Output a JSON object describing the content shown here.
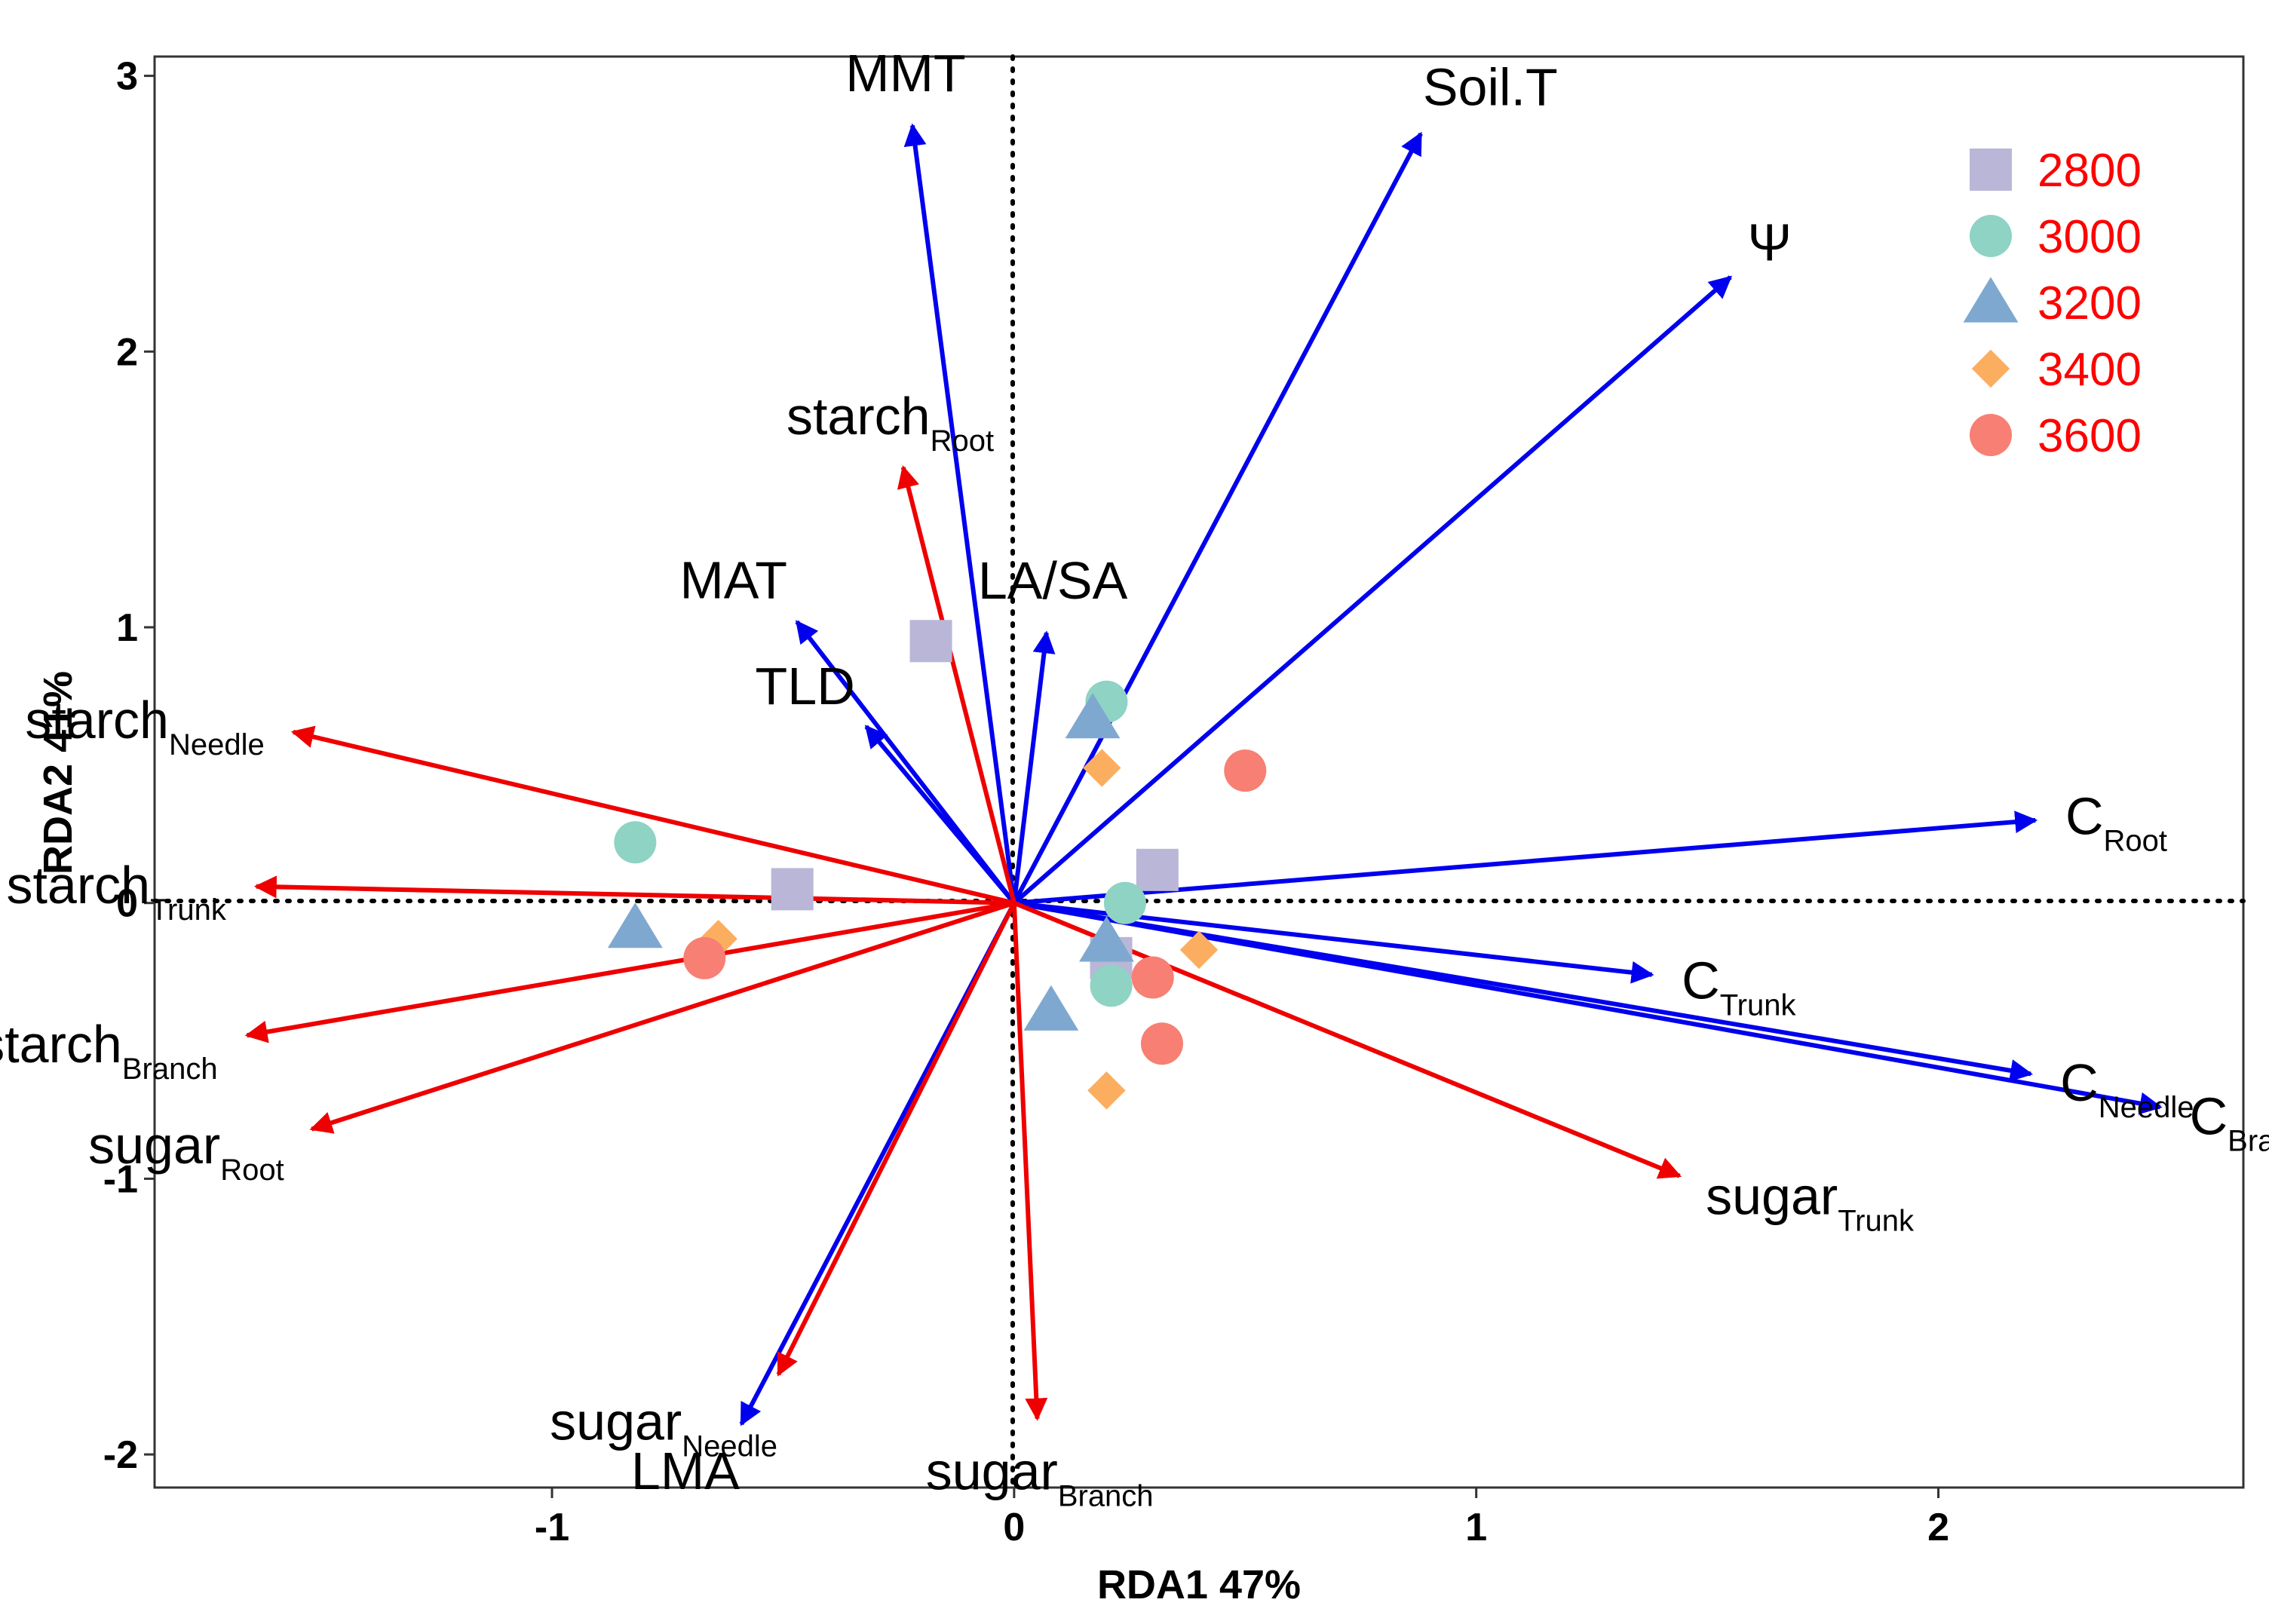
{
  "chart_data": {
    "type": "scatter",
    "subtype": "rda-biplot",
    "xlabel": "RDA1 47%",
    "ylabel": "RDA2 41%",
    "xlim": [
      -1.86,
      2.66
    ],
    "ylim": [
      -2.12,
      3.07
    ],
    "x_ticks": [
      -1,
      0,
      1,
      2
    ],
    "x_tick_labels": [
      "-1",
      "0",
      "1",
      "2"
    ],
    "y_ticks": [
      -2,
      -1,
      0,
      1,
      2,
      3
    ],
    "y_tick_labels": [
      "-2",
      "-1",
      "0",
      "1",
      "2",
      "3"
    ],
    "grid": false,
    "reference_lines": "dotted lines at x = 0 and y = 0",
    "legend_position": "top-right",
    "colors": {
      "environment_vectors": "#0000ee",
      "trait_vectors": "#ee0000",
      "legend_text": "#ff0000"
    },
    "groups": [
      {
        "name": "2800",
        "shape": "square",
        "color": "#b9b6d8",
        "points": [
          [
            -0.18,
            0.95
          ],
          [
            0.31,
            0.12
          ],
          [
            -0.48,
            0.05
          ],
          [
            0.21,
            -0.2
          ]
        ]
      },
      {
        "name": "3000",
        "shape": "circle",
        "color": "#8ed3c3",
        "points": [
          [
            0.2,
            0.73
          ],
          [
            -0.82,
            0.22
          ],
          [
            0.24,
            0.0
          ],
          [
            0.21,
            -0.3
          ]
        ]
      },
      {
        "name": "3200",
        "shape": "triangle",
        "color": "#7ea8cf",
        "points": [
          [
            0.17,
            0.67
          ],
          [
            -0.82,
            -0.09
          ],
          [
            0.2,
            -0.14
          ],
          [
            0.08,
            -0.39
          ]
        ]
      },
      {
        "name": "3400",
        "shape": "diamond",
        "color": "#fbae5f",
        "points": [
          [
            0.19,
            0.49
          ],
          [
            -0.64,
            -0.13
          ],
          [
            0.4,
            -0.17
          ],
          [
            0.2,
            -0.68
          ]
        ]
      },
      {
        "name": "3600",
        "shape": "circle",
        "color": "#f77f73",
        "points": [
          [
            0.5,
            0.48
          ],
          [
            -0.67,
            -0.2
          ],
          [
            0.3,
            -0.27
          ],
          [
            0.32,
            -0.51
          ]
        ]
      }
    ],
    "vectors": [
      {
        "kind": "environment",
        "label": "MMT",
        "sub": "",
        "x": -0.22,
        "y": 2.82
      },
      {
        "kind": "environment",
        "label": "Soil.T",
        "sub": "",
        "x": 0.88,
        "y": 2.79
      },
      {
        "kind": "environment",
        "label": "Ψ",
        "sub": "",
        "x": 1.55,
        "y": 2.27
      },
      {
        "kind": "environment",
        "label": "MAT",
        "sub": "",
        "x": -0.47,
        "y": 1.02
      },
      {
        "kind": "environment",
        "label": "LA/SA",
        "sub": "",
        "x": 0.07,
        "y": 0.98
      },
      {
        "kind": "environment",
        "label": "TLD",
        "sub": "",
        "x": -0.32,
        "y": 0.64
      },
      {
        "kind": "environment",
        "label": "C",
        "sub": "Root",
        "x": 2.21,
        "y": 0.3
      },
      {
        "kind": "environment",
        "label": "C",
        "sub": "Trunk",
        "x": 1.38,
        "y": -0.26
      },
      {
        "kind": "environment",
        "label": "C",
        "sub": "Needle",
        "x": 2.2,
        "y": -0.62
      },
      {
        "kind": "environment",
        "label": "C",
        "sub": "Branch",
        "x": 2.48,
        "y": -0.74
      },
      {
        "kind": "environment",
        "label": "LMA",
        "sub": "",
        "x": -0.59,
        "y": -1.89
      },
      {
        "kind": "trait",
        "label": "starch",
        "sub": "Root",
        "x": -0.24,
        "y": 1.58
      },
      {
        "kind": "trait",
        "label": "starch",
        "sub": "Needle",
        "x": -1.56,
        "y": 0.62
      },
      {
        "kind": "trait",
        "label": "starch",
        "sub": "Trunk",
        "x": -1.64,
        "y": 0.06
      },
      {
        "kind": "trait",
        "label": "starch",
        "sub": "Branch",
        "x": -1.66,
        "y": -0.48
      },
      {
        "kind": "trait",
        "label": "sugar",
        "sub": "Root",
        "x": -1.52,
        "y": -0.82
      },
      {
        "kind": "trait",
        "label": "sugar",
        "sub": "Trunk",
        "x": 1.44,
        "y": -0.99
      },
      {
        "kind": "trait",
        "label": "sugar",
        "sub": "Needle",
        "x": -0.51,
        "y": -1.71
      },
      {
        "kind": "trait",
        "label": "sugar",
        "sub": "Branch",
        "x": 0.05,
        "y": -1.87
      }
    ]
  }
}
